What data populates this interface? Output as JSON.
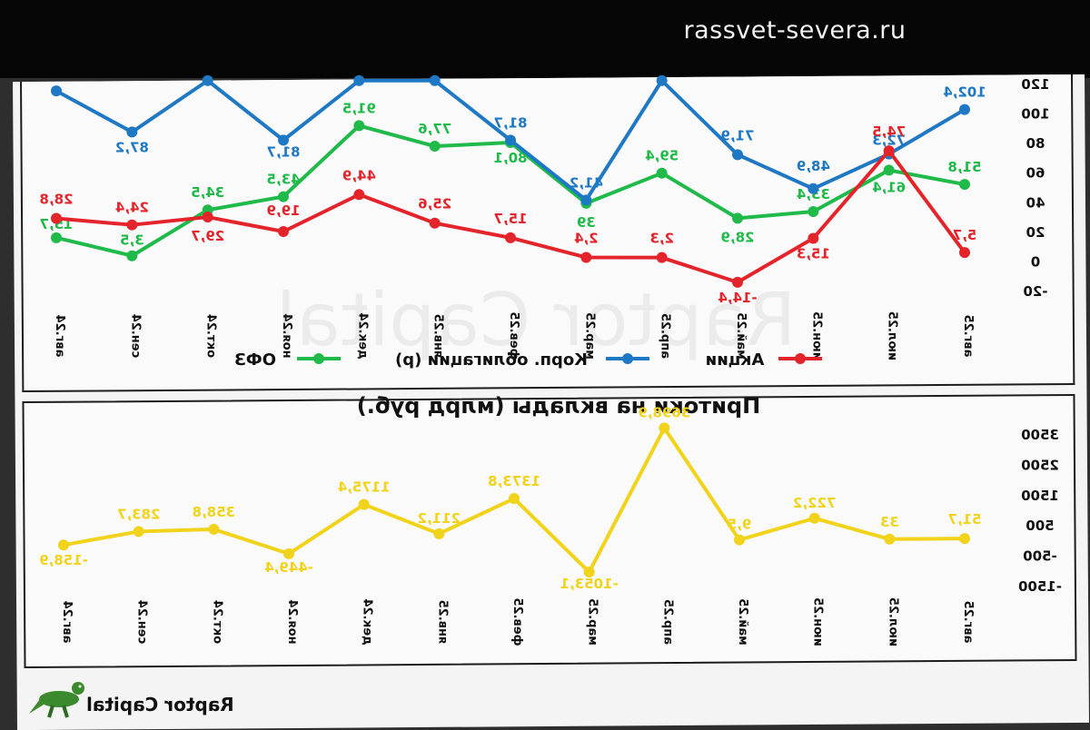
{
  "site": {
    "domain": "rassvet-severa.ru"
  },
  "brand": {
    "name": "Raptor Capital",
    "watermark": "Raptor Capital"
  },
  "chart_data": [
    {
      "type": "line",
      "categories": [
        "авг.25",
        "июл.25",
        "июн.25",
        "май.25",
        "апр.25",
        "мар.25",
        "фев.25",
        "янв.25",
        "дек.24",
        "ноя.24",
        "окт.24",
        "сен.24",
        "авг.24"
      ],
      "ylim": [
        -20,
        120
      ],
      "yticks": [
        -20,
        0,
        20,
        40,
        60,
        80,
        100,
        120
      ],
      "legend_position": "bottom",
      "series": [
        {
          "name": "ОФЗ",
          "color": "#1fba4a",
          "values": [
            51.8,
            61.4,
            33.4,
            28.9,
            59.4,
            39,
            80.1,
            77.6,
            91.5,
            43.5,
            34.5,
            3.5,
            15.7
          ],
          "labels": [
            "51,8",
            "61,4",
            "33,4",
            "28,9",
            "59,4",
            "39",
            "80,1",
            "77,6",
            "91,5",
            "43,5",
            "34,5",
            "3,5",
            "15,7"
          ]
        },
        {
          "name": "Корп. облигации (р)",
          "color": "#1f78c4",
          "values": [
            102.4,
            72.3,
            48.9,
            71.9,
            122,
            41.2,
            81.7,
            122,
            122,
            81.7,
            122,
            87.2,
            115
          ],
          "labels": [
            "102,4",
            "72,3",
            "48,9",
            "71,9",
            "",
            "41,2",
            "81,7",
            "",
            "",
            "81,7",
            "",
            "87,2",
            ""
          ]
        },
        {
          "name": "Акции",
          "color": "#e3242b",
          "values": [
            5.7,
            74.5,
            15.3,
            -14.4,
            2.3,
            2.4,
            15.7,
            25.6,
            44.9,
            19.9,
            29.7,
            24.4,
            28.8
          ],
          "labels": [
            "5,7",
            "74,5",
            "15,3",
            "-14,4",
            "2,3",
            "2,4",
            "15,7",
            "25,6",
            "44,9",
            "19,9",
            "29,7",
            "24,4",
            "28,8"
          ]
        }
      ]
    },
    {
      "type": "line",
      "title": "Притоки на вклады (млрд руб.)",
      "categories": [
        "авг.25",
        "июл.25",
        "июн.25",
        "май.25",
        "апр.25",
        "мар.25",
        "фев.25",
        "янв.25",
        "дек.24",
        "ноя.24",
        "окт.24",
        "сен.24",
        "авг.24"
      ],
      "ylim": [
        -1500,
        3500
      ],
      "yticks": [
        -1500,
        -500,
        500,
        1500,
        2500,
        3500
      ],
      "series": [
        {
          "name": "",
          "color": "#f2d31b",
          "values": [
            51.7,
            33,
            722.2,
            9.5,
            3698.9,
            -1053.1,
            1373.8,
            211.2,
            1175.4,
            -449.4,
            358.8,
            283.7,
            -158.9
          ],
          "labels": [
            "51,7",
            "33",
            "722,2",
            "9,5",
            "3698,9",
            "-1053,1",
            "1373,8",
            "211,2",
            "1175,4",
            "-449,4",
            "358,8",
            "283,7",
            "-158,9"
          ]
        }
      ]
    }
  ]
}
